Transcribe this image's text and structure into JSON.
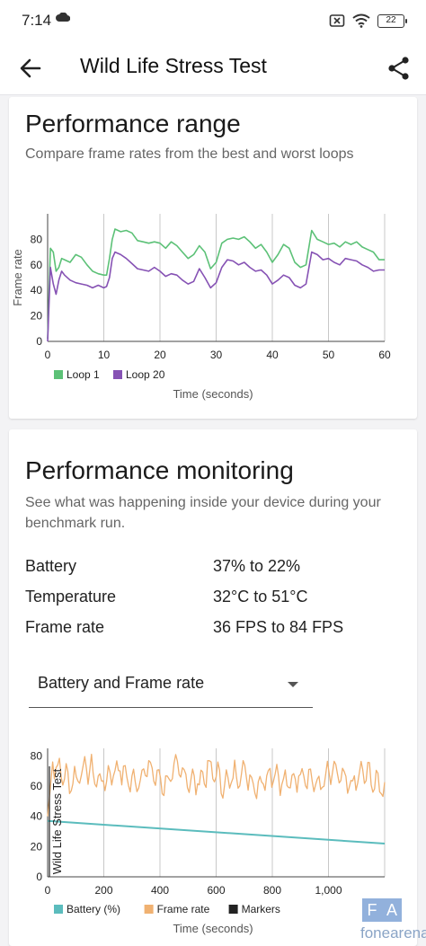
{
  "status": {
    "time": "7:14",
    "battery": "22"
  },
  "app_bar": {
    "title": "Wild Life Stress Test"
  },
  "performance_range": {
    "title": "Performance range",
    "subtitle": "Compare frame rates from the best and worst loops"
  },
  "performance_monitoring": {
    "title": "Performance monitoring",
    "subtitle": "See what was happening inside your device during your benchmark run.",
    "stats": [
      {
        "label": "Battery",
        "value": "37% to 22%"
      },
      {
        "label": "Temperature",
        "value": "32°C to 51°C"
      },
      {
        "label": "Frame rate",
        "value": "36 FPS to 84 FPS"
      }
    ],
    "dropdown_value": "Battery and Frame rate"
  },
  "watermark": {
    "letters": [
      "F",
      "A"
    ],
    "text": "fonearena"
  },
  "chart_data": [
    {
      "type": "line",
      "xlabel": "Time (seconds)",
      "ylabel": "Frame rate",
      "xlim": [
        0,
        60
      ],
      "ylim": [
        0,
        100
      ],
      "x_ticks": [
        "0",
        "10",
        "20",
        "30",
        "40",
        "50",
        "60"
      ],
      "y_ticks": [
        "0",
        "20",
        "40",
        "60",
        "80"
      ],
      "grid": "vertical",
      "legend": "bottom-left",
      "series": [
        {
          "name": "Loop 1",
          "color": "#5cc177",
          "x": [
            0,
            0.5,
            1,
            1.5,
            2,
            2.5,
            3,
            4,
            5,
            6,
            7,
            8,
            9,
            10,
            10.5,
            11,
            11.5,
            12,
            13,
            14,
            15,
            16,
            17,
            18,
            19,
            20,
            21,
            22,
            23,
            24,
            25,
            26,
            27,
            28,
            29,
            30,
            31,
            32,
            33,
            34,
            35,
            36,
            37,
            38,
            39,
            40,
            41,
            42,
            43,
            44,
            45,
            46,
            47,
            48,
            49,
            50,
            51,
            52,
            53,
            54,
            55,
            56,
            57,
            58,
            59,
            60
          ],
          "values": [
            2,
            73,
            70,
            55,
            58,
            65,
            64,
            62,
            68,
            66,
            60,
            55,
            53,
            52,
            52,
            65,
            80,
            88,
            86,
            87,
            85,
            79,
            78,
            77,
            78,
            77,
            73,
            78,
            75,
            70,
            65,
            68,
            75,
            70,
            57,
            62,
            77,
            80,
            81,
            80,
            82,
            78,
            73,
            76,
            70,
            62,
            68,
            76,
            73,
            62,
            58,
            60,
            87,
            80,
            78,
            76,
            77,
            74,
            78,
            76,
            78,
            74,
            72,
            70,
            64,
            64
          ]
        },
        {
          "name": "Loop 20",
          "color": "#8652b4",
          "x": [
            0,
            0.5,
            1,
            1.5,
            2,
            2.5,
            3,
            4,
            5,
            6,
            7,
            8,
            9,
            10,
            10.5,
            11,
            11.5,
            12,
            13,
            14,
            15,
            16,
            17,
            18,
            19,
            20,
            21,
            22,
            23,
            24,
            25,
            26,
            27,
            28,
            29,
            30,
            31,
            32,
            33,
            34,
            35,
            36,
            37,
            38,
            39,
            40,
            41,
            42,
            43,
            44,
            45,
            46,
            47,
            48,
            49,
            50,
            51,
            52,
            53,
            54,
            55,
            56,
            57,
            58,
            59,
            60
          ],
          "values": [
            0,
            58,
            45,
            37,
            48,
            55,
            52,
            48,
            46,
            45,
            44,
            42,
            44,
            42,
            43,
            50,
            65,
            70,
            68,
            65,
            61,
            57,
            56,
            55,
            58,
            55,
            51,
            53,
            52,
            48,
            45,
            47,
            57,
            50,
            42,
            46,
            58,
            64,
            63,
            60,
            62,
            58,
            55,
            56,
            52,
            45,
            48,
            52,
            50,
            44,
            42,
            45,
            70,
            68,
            64,
            65,
            62,
            60,
            65,
            64,
            63,
            60,
            58,
            55,
            56,
            56
          ]
        }
      ]
    },
    {
      "type": "line",
      "xlabel": "Time (seconds)",
      "xlim": [
        0,
        1200
      ],
      "ylim": [
        0,
        85
      ],
      "x_ticks": [
        "0",
        "200",
        "400",
        "600",
        "800",
        "1,000"
      ],
      "y_ticks": [
        "0",
        "20",
        "40",
        "60",
        "80"
      ],
      "annotation": "Wild Life Stress Test",
      "legend": "bottom-left",
      "series": [
        {
          "name": "Battery (%)",
          "color": "#5bbcbd",
          "x": [
            0,
            1200
          ],
          "values": [
            37,
            22
          ]
        },
        {
          "name": "Frame rate",
          "color": "#f0b171",
          "range": [
            36,
            84
          ]
        },
        {
          "name": "Markers",
          "color": "#222222"
        }
      ]
    }
  ]
}
